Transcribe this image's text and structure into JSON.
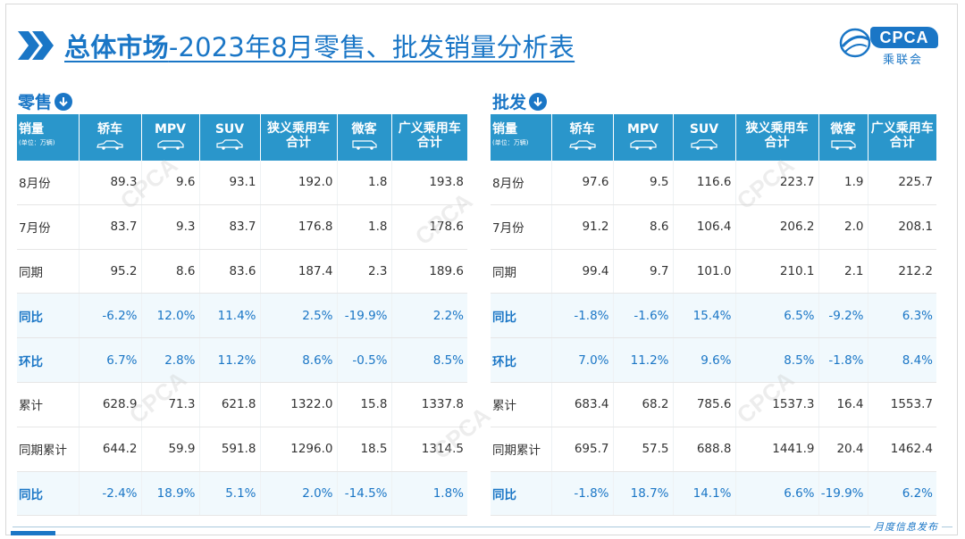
{
  "title": {
    "bold_part": "总体市场",
    "rest_part": "-2023年8月零售、批发销量分析表"
  },
  "logo": {
    "main": "CPCA",
    "sub": "乘联会"
  },
  "columns": [
    {
      "name": "轿车",
      "icon": "sedan-icon"
    },
    {
      "name": "MPV",
      "icon": "mpv-icon"
    },
    {
      "name": "SUV",
      "icon": "suv-icon"
    },
    {
      "name": "狭义乘用车合计",
      "line1": "狭义乘用车",
      "line2": "合计"
    },
    {
      "name": "微客",
      "icon": "minivan-icon"
    },
    {
      "name": "广义乘用车合计",
      "line1": "广义乘用车",
      "line2": "合计"
    }
  ],
  "header_label": {
    "title": "销量",
    "unit": "(单位：万辆)"
  },
  "retail": {
    "label": "零售",
    "rows": [
      {
        "label": "8月份",
        "values": [
          "89.3",
          "9.6",
          "93.1",
          "192.0",
          "1.8",
          "193.8"
        ],
        "pct": false
      },
      {
        "label": "7月份",
        "values": [
          "83.7",
          "9.3",
          "83.7",
          "176.8",
          "1.8",
          "178.6"
        ],
        "pct": false
      },
      {
        "label": "同期",
        "values": [
          "95.2",
          "8.6",
          "83.6",
          "187.4",
          "2.3",
          "189.6"
        ],
        "pct": false
      },
      {
        "label": "同比",
        "values": [
          "-6.2%",
          "12.0%",
          "11.4%",
          "2.5%",
          "-19.9%",
          "2.2%"
        ],
        "pct": true
      },
      {
        "label": "环比",
        "values": [
          "6.7%",
          "2.8%",
          "11.2%",
          "8.6%",
          "-0.5%",
          "8.5%"
        ],
        "pct": true
      },
      {
        "label": "累计",
        "values": [
          "628.9",
          "71.3",
          "621.8",
          "1322.0",
          "15.8",
          "1337.8"
        ],
        "pct": false
      },
      {
        "label": "同期累计",
        "values": [
          "644.2",
          "59.9",
          "591.8",
          "1296.0",
          "18.5",
          "1314.5"
        ],
        "pct": false
      },
      {
        "label": "同比",
        "values": [
          "-2.4%",
          "18.9%",
          "5.1%",
          "2.0%",
          "-14.5%",
          "1.8%"
        ],
        "pct": true
      }
    ]
  },
  "wholesale": {
    "label": "批发",
    "rows": [
      {
        "label": "8月份",
        "values": [
          "97.6",
          "9.5",
          "116.6",
          "223.7",
          "1.9",
          "225.7"
        ],
        "pct": false
      },
      {
        "label": "7月份",
        "values": [
          "91.2",
          "8.6",
          "106.4",
          "206.2",
          "2.0",
          "208.1"
        ],
        "pct": false
      },
      {
        "label": "同期",
        "values": [
          "99.4",
          "9.7",
          "101.0",
          "210.1",
          "2.1",
          "212.2"
        ],
        "pct": false
      },
      {
        "label": "同比",
        "values": [
          "-1.8%",
          "-1.6%",
          "15.4%",
          "6.5%",
          "-9.2%",
          "6.3%"
        ],
        "pct": true
      },
      {
        "label": "环比",
        "values": [
          "7.0%",
          "11.2%",
          "9.6%",
          "8.5%",
          "-1.8%",
          "8.4%"
        ],
        "pct": true
      },
      {
        "label": "累计",
        "values": [
          "683.4",
          "68.2",
          "785.6",
          "1537.3",
          "16.4",
          "1553.7"
        ],
        "pct": false
      },
      {
        "label": "同期累计",
        "values": [
          "695.7",
          "57.5",
          "688.8",
          "1441.9",
          "20.4",
          "1462.4"
        ],
        "pct": false
      },
      {
        "label": "同比",
        "values": [
          "-1.8%",
          "18.7%",
          "14.1%",
          "6.6%",
          "-19.9%",
          "6.2%"
        ],
        "pct": true
      }
    ]
  },
  "footer": {
    "text": "月度信息发布"
  },
  "colors": {
    "accent": "#1a76c6",
    "header_bg": "#2a96cb",
    "pct_row_bg": "#f1f9fd"
  }
}
